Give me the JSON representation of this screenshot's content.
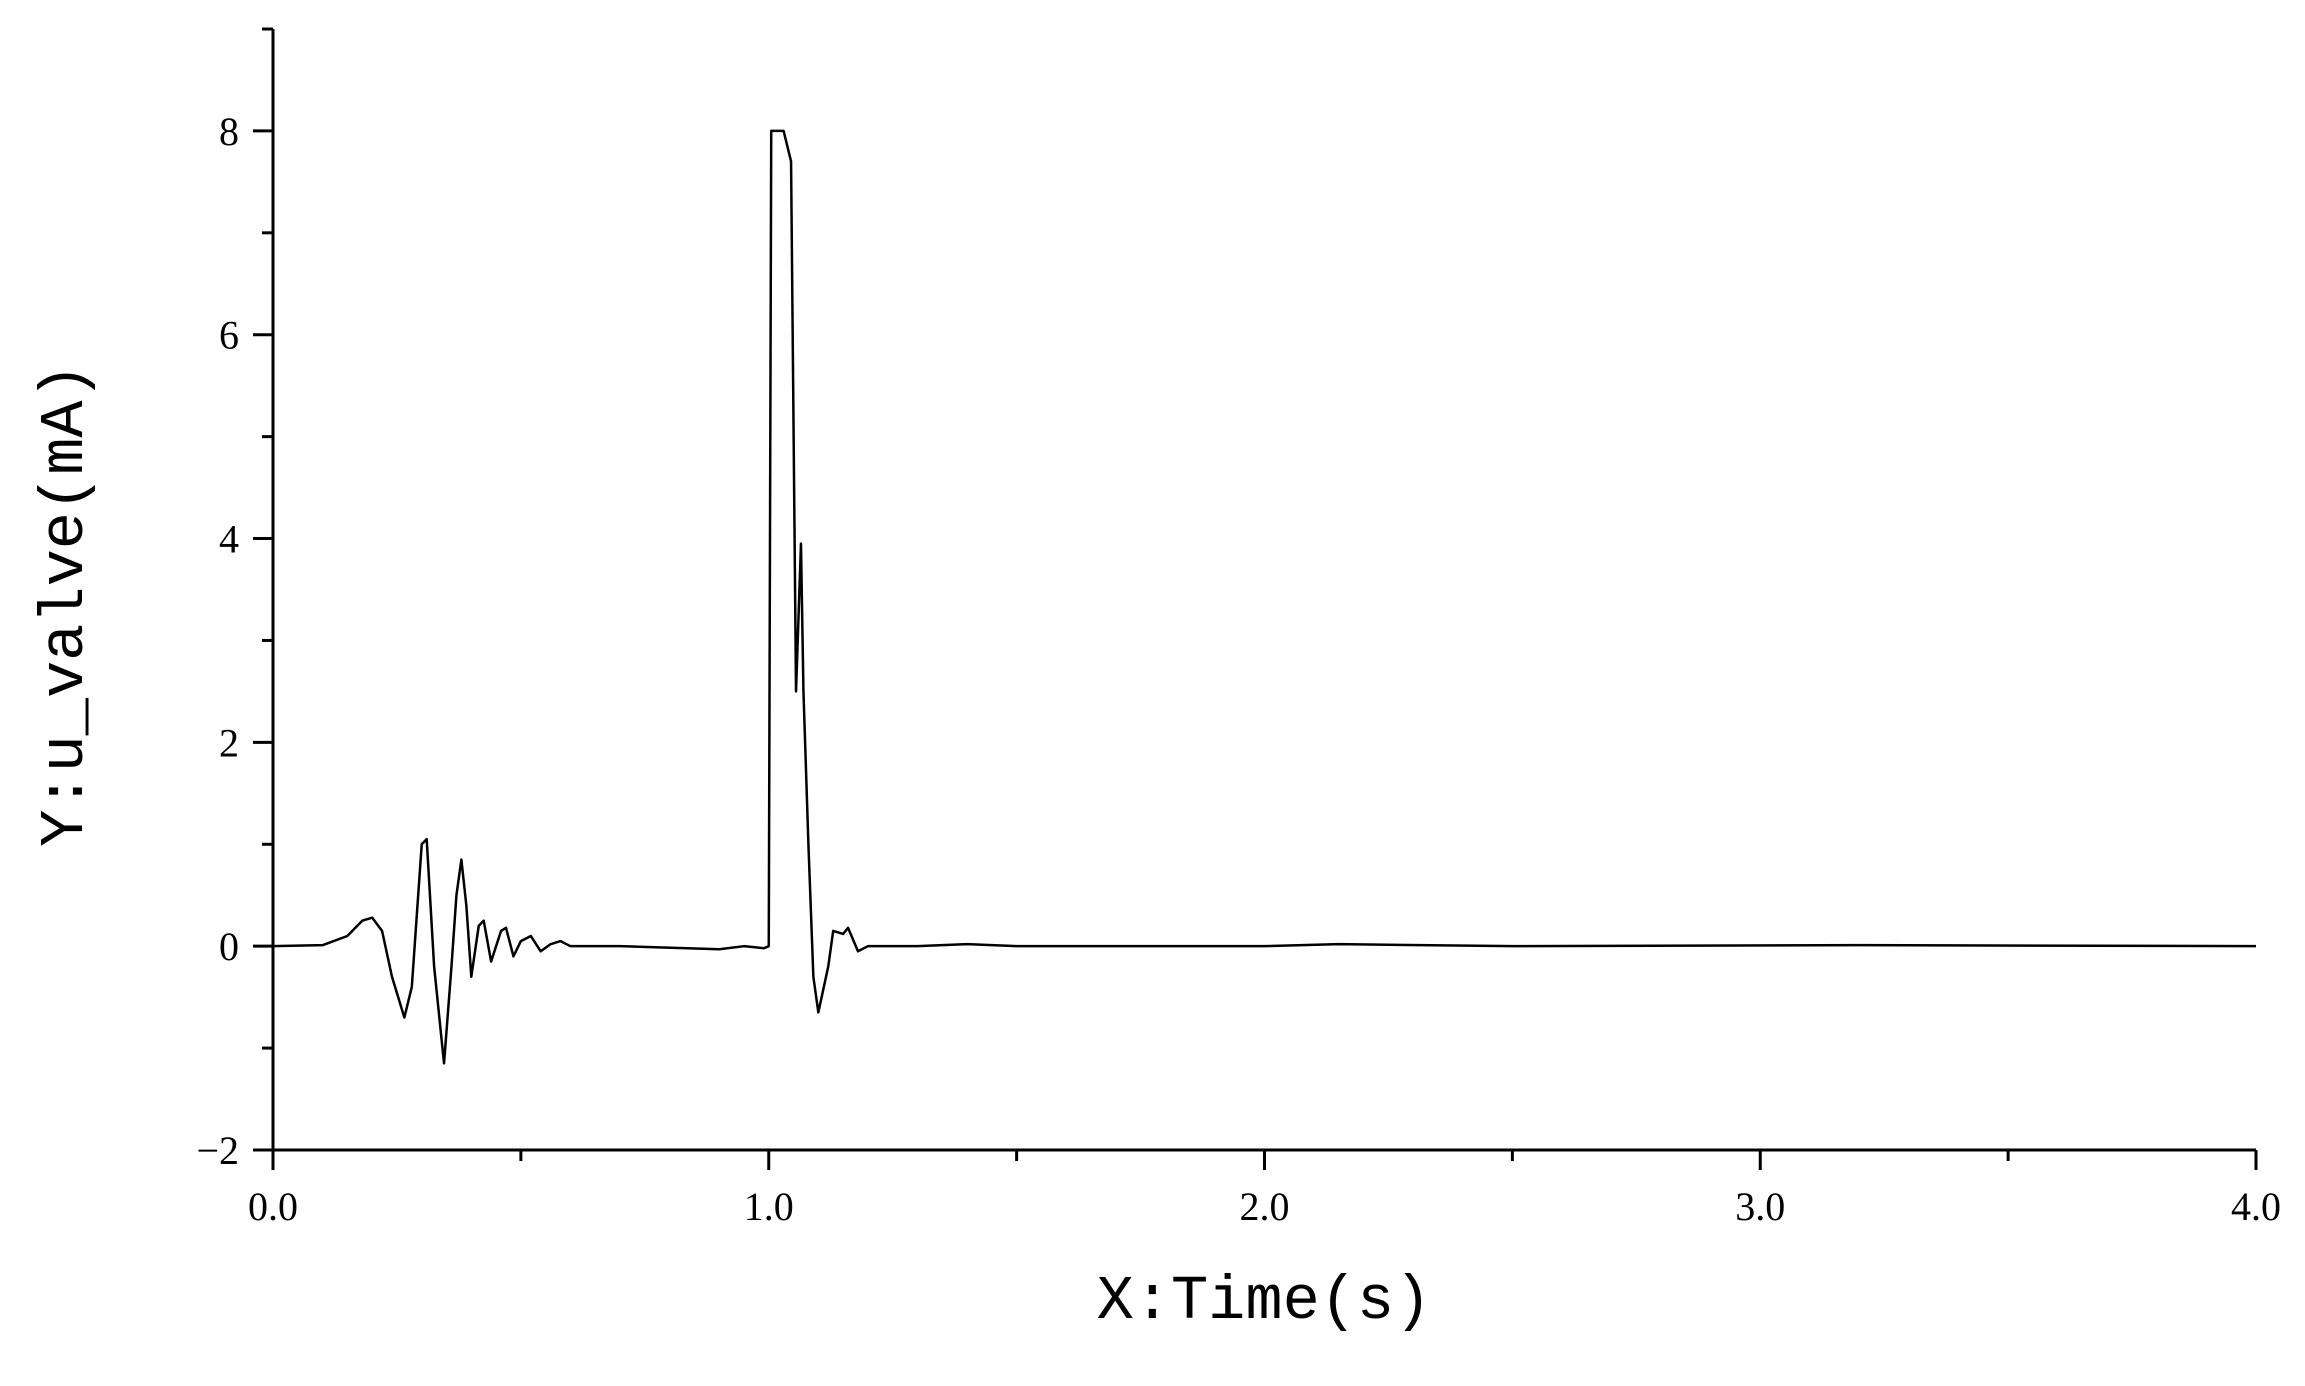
{
  "chart_data": {
    "type": "line",
    "x_label": "X:Time(s)",
    "y_label": "Y:u_valve(mA)",
    "xlim": [
      0,
      4
    ],
    "ylim": [
      -2,
      9
    ],
    "xticks": [
      {
        "value": 0,
        "label": "0.0"
      },
      {
        "value": 1,
        "label": "1.0"
      },
      {
        "value": 2,
        "label": "2.0"
      },
      {
        "value": 3,
        "label": "3.0"
      },
      {
        "value": 4,
        "label": "4.0"
      }
    ],
    "yticks": [
      {
        "value": -2,
        "label": "−2"
      },
      0,
      2,
      4,
      6,
      8
    ],
    "grid": false,
    "series": [
      {
        "color": "#000000",
        "x": [
          0,
          0.1,
          0.15,
          0.18,
          0.2,
          0.22,
          0.24,
          0.265,
          0.28,
          0.3,
          0.31,
          0.325,
          0.345,
          0.36,
          0.37,
          0.38,
          0.39,
          0.4,
          0.415,
          0.425,
          0.44,
          0.46,
          0.47,
          0.485,
          0.5,
          0.52,
          0.54,
          0.56,
          0.58,
          0.6,
          0.7,
          0.9,
          0.95,
          0.99,
          1.0,
          1.005,
          1.03,
          1.045,
          1.055,
          1.065,
          1.07,
          1.08,
          1.09,
          1.1,
          1.12,
          1.13,
          1.15,
          1.16,
          1.18,
          1.2,
          1.3,
          1.4,
          1.5,
          2.0,
          2.15,
          2.5,
          3.2,
          4.0
        ],
        "values": [
          0,
          0.01,
          0.1,
          0.25,
          0.28,
          0.15,
          -0.3,
          -0.7,
          -0.4,
          1.0,
          1.05,
          -0.2,
          -1.15,
          -0.2,
          0.5,
          0.85,
          0.4,
          -0.3,
          0.2,
          0.25,
          -0.15,
          0.15,
          0.18,
          -0.1,
          0.05,
          0.1,
          -0.05,
          0.02,
          0.05,
          0,
          0,
          -0.03,
          0,
          -0.02,
          0,
          8,
          8,
          7.7,
          2.5,
          3.95,
          2.5,
          1.0,
          -0.3,
          -0.65,
          -0.2,
          0.15,
          0.12,
          0.18,
          -0.05,
          0,
          0,
          0.02,
          0,
          0,
          0.02,
          0,
          0.01,
          0
        ]
      }
    ]
  }
}
